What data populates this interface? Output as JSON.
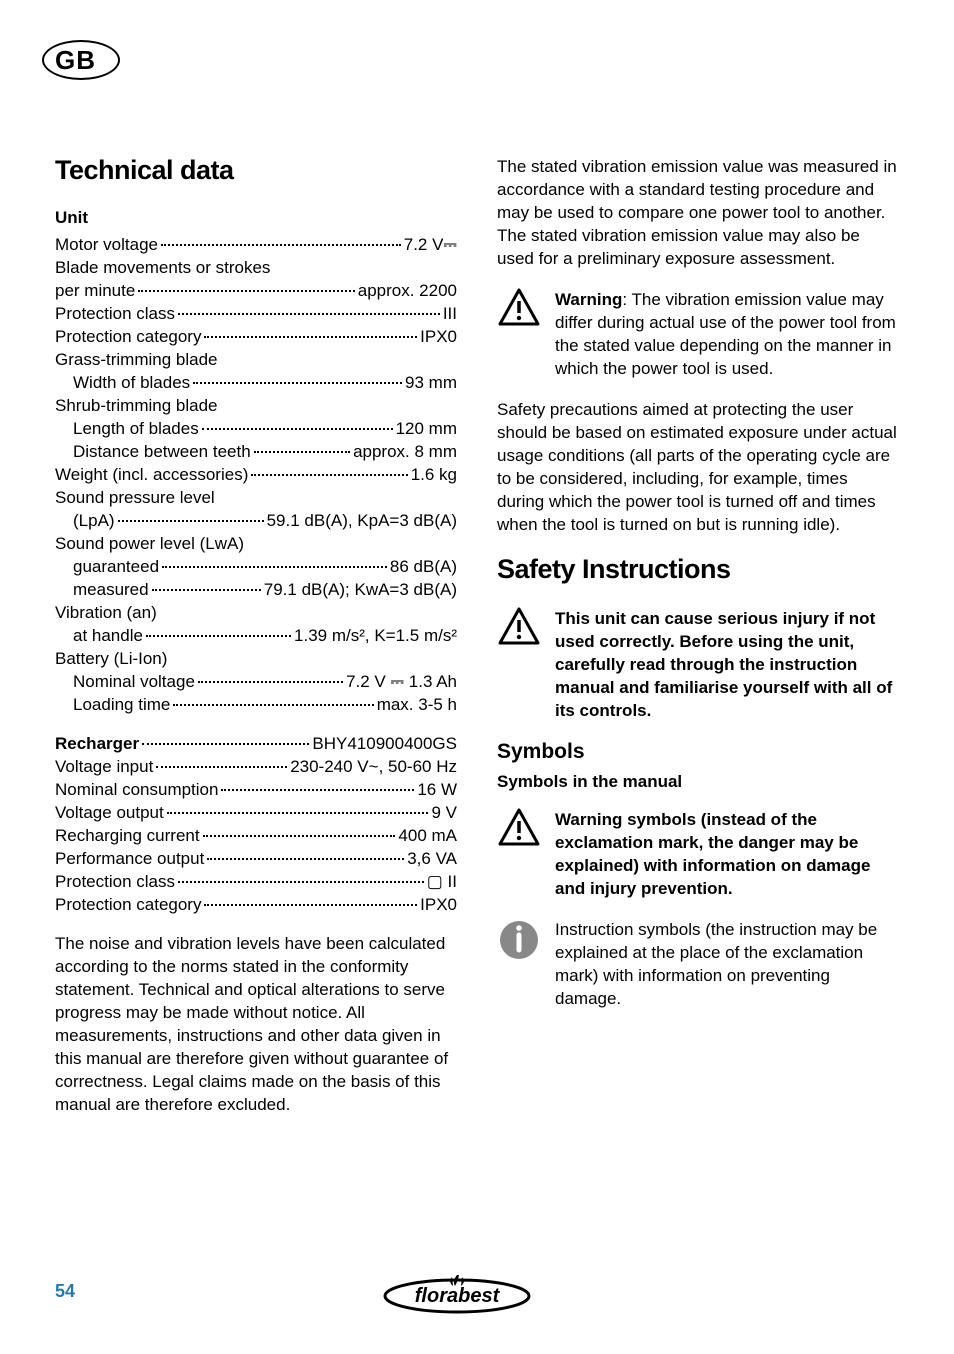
{
  "gb": "GB",
  "td": {
    "title": "Technical data",
    "unit": "Unit",
    "rows1": [
      {
        "l": "Motor voltage",
        "r": "7.2 V⎓"
      },
      {
        "l": "Blade movements or strokes",
        "r": ""
      },
      {
        "l": "per minute",
        "r": "approx. 2200"
      },
      {
        "l": "Protection class",
        "r": "III"
      },
      {
        "l": "Protection category",
        "r": "IPX0"
      },
      {
        "l": "Grass-trimming blade",
        "r": ""
      },
      {
        "l": "Width of blades",
        "r": "93 mm",
        "ind": true
      },
      {
        "l": "Shrub-trimming blade",
        "r": ""
      },
      {
        "l": "Length of blades",
        "r": "120 mm",
        "ind": true
      },
      {
        "l": "Distance between teeth",
        "r": "approx. 8 mm",
        "ind": true
      },
      {
        "l": "Weight (incl. accessories)",
        "r": "1.6 kg"
      },
      {
        "l": "Sound pressure level",
        "r": ""
      },
      {
        "l": "(LpA)",
        "r": "59.1 dB(A), KpA=3 dB(A)",
        "ind": true
      },
      {
        "l": "Sound power level (LwA)",
        "r": ""
      },
      {
        "l": "guaranteed",
        "r": "86 dB(A)",
        "ind": true
      },
      {
        "l": "measured",
        "r": "79.1 dB(A); KwA=3 dB(A)",
        "ind": true
      },
      {
        "l": "Vibration (an)",
        "r": ""
      },
      {
        "l": "at handle",
        "r": "1.39 m/s², K=1.5 m/s²",
        "ind": true
      },
      {
        "l": "Battery (Li-Ion)",
        "r": ""
      },
      {
        "l": "Nominal voltage",
        "r": "7.2 V ⎓ 1.3 Ah",
        "ind": true
      },
      {
        "l": "Loading time",
        "r": "max. 3-5 h",
        "ind": true
      }
    ],
    "recharger": {
      "l": "Recharger",
      "r": "BHY410900400GS"
    },
    "rows2": [
      {
        "l": "Voltage input",
        "r": "230-240 V~, 50-60 Hz"
      },
      {
        "l": "Nominal consumption",
        "r": "16 W"
      },
      {
        "l": "Voltage output",
        "r": "9 V"
      },
      {
        "l": "Recharging current",
        "r": "400 mA"
      },
      {
        "l": "Performance output",
        "r": "3,6 VA"
      },
      {
        "l": "Protection class",
        "r": "▢ II"
      },
      {
        "l": "Protection category",
        "r": "IPX0"
      }
    ]
  },
  "p1": "The noise and vibration levels have been calculated according to the norms stated in the conformity statement. Technical and optical alterations to serve progress may be made without notice. All measurements, instructions and other data given in this manual are therefore given without guarantee of correctness. Legal claims made on the basis of this manual are therefore excluded.",
  "p2": "The stated vibration emission value was measured in accordance with a standard testing procedure and may be used to compare one power tool to another. The stated vibration emission value may also be used for a preliminary exposure assessment.",
  "warn1b": "Warning",
  "warn1": ": The vibration emission value may differ during actual use of the power tool from the stated value depending on the manner in which the power tool is used.",
  "p3": "Safety precautions aimed at protecting the user should be based on estimated exposure under actual usage conditions (all parts of the operating cycle are to be considered, including, for example, times during which the power tool is turned off and times when the tool is turned on but is running idle).",
  "si": "Safety Instructions",
  "warn2": "This unit can cause serious injury if not used correctly. Before using the unit, carefully read through the instruction manual and familiarise yourself with all of its controls.",
  "sym": "Symbols",
  "symman": "Symbols in the manual",
  "warn3": "Warning symbols (instead of the exclamation mark, the danger may be explained) with information on damage and injury prevention.",
  "info1": "Instruction symbols (the instruction may be explained at the place of the exclamation mark) with information on preventing damage.",
  "page": "54",
  "logo": "florabest"
}
